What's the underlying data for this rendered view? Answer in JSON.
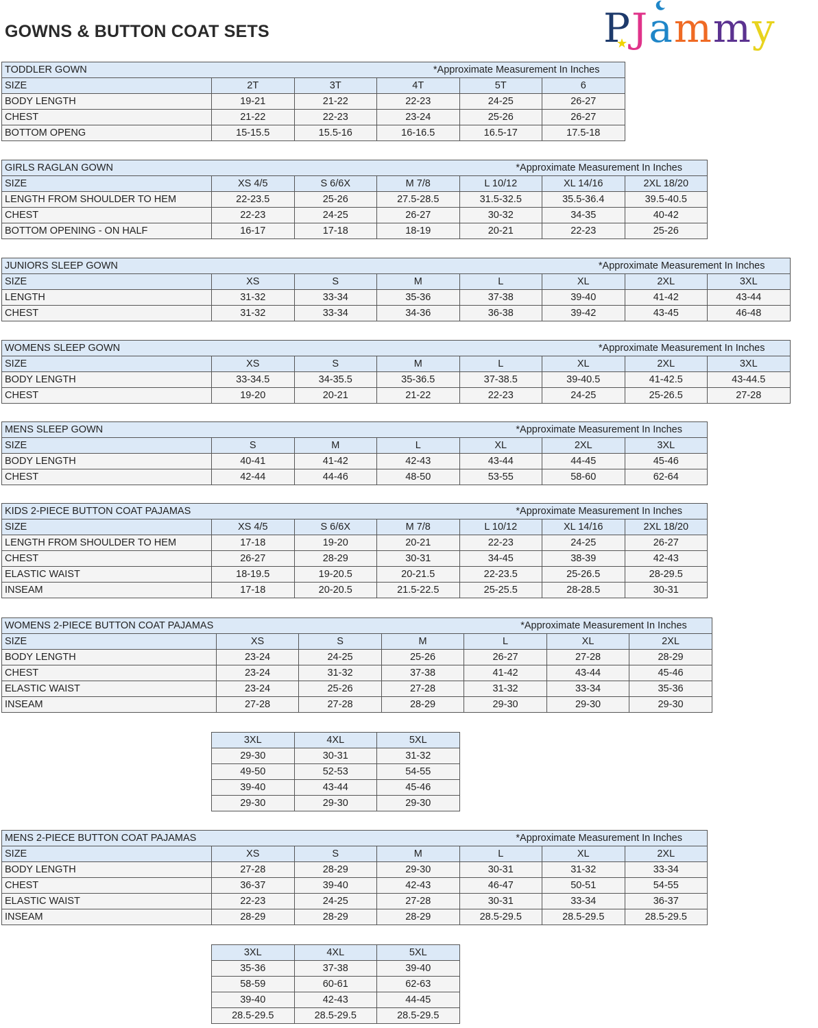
{
  "page_title": "GOWNS & BUTTON COAT SETS",
  "logo": {
    "text": "PJammy",
    "letters": [
      "P",
      "J",
      "a",
      "m",
      "m",
      "y"
    ],
    "colors": [
      "#1d3a6b",
      "#e0338a",
      "#1f86c8",
      "#ef6a24",
      "#5b3290",
      "#e8d31e"
    ]
  },
  "colors": {
    "header_bg": "#dce9f7",
    "row_bg": "#f4f4f4",
    "border": "#555555"
  },
  "note": "*Approximate Measurement In Inches",
  "tables": [
    {
      "title": "TODDLER GOWN",
      "sizes": [
        "2T",
        "3T",
        "4T",
        "5T",
        "6"
      ],
      "rows": [
        {
          "label": "BODY LENGTH",
          "values": [
            "19-21",
            "21-22",
            "22-23",
            "24-25",
            "26-27"
          ]
        },
        {
          "label": "CHEST",
          "values": [
            "21-22",
            "22-23",
            "23-24",
            "25-26",
            "26-27"
          ]
        },
        {
          "label": "BOTTOM OPENG",
          "values": [
            "15-15.5",
            "15.5-16",
            "16-16.5",
            "16.5-17",
            "17.5-18"
          ]
        }
      ]
    },
    {
      "title": "GIRLS RAGLAN GOWN",
      "sizes": [
        "XS 4/5",
        "S 6/6X",
        "M 7/8",
        "L 10/12",
        "XL 14/16",
        "2XL 18/20"
      ],
      "rows": [
        {
          "label": "LENGTH FROM SHOULDER TO HEM",
          "values": [
            "22-23.5",
            "25-26",
            "27.5-28.5",
            "31.5-32.5",
            "35.5-36.4",
            "39.5-40.5"
          ]
        },
        {
          "label": "CHEST",
          "values": [
            "22-23",
            "24-25",
            "26-27",
            "30-32",
            "34-35",
            "40-42"
          ]
        },
        {
          "label": "BOTTOM OPENING - ON HALF",
          "values": [
            "16-17",
            "17-18",
            "18-19",
            "20-21",
            "22-23",
            "25-26"
          ]
        }
      ]
    },
    {
      "title": "JUNIORS SLEEP GOWN",
      "sizes": [
        "XS",
        "S",
        "M",
        "L",
        "XL",
        "2XL",
        "3XL"
      ],
      "rows": [
        {
          "label": "LENGTH",
          "values": [
            "31-32",
            "33-34",
            "35-36",
            "37-38",
            "39-40",
            "41-42",
            "43-44"
          ]
        },
        {
          "label": "CHEST",
          "values": [
            "31-32",
            "33-34",
            "34-36",
            "36-38",
            "39-42",
            "43-45",
            "46-48"
          ]
        }
      ]
    },
    {
      "title": "WOMENS SLEEP GOWN",
      "sizes": [
        "XS",
        "S",
        "M",
        "L",
        "XL",
        "2XL",
        "3XL"
      ],
      "rows": [
        {
          "label": "BODY LENGTH",
          "values": [
            "33-34.5",
            "34-35.5",
            "35-36.5",
            "37-38.5",
            "39-40.5",
            "41-42.5",
            "43-44.5"
          ]
        },
        {
          "label": "CHEST",
          "values": [
            "19-20",
            "20-21",
            "21-22",
            "22-23",
            "24-25",
            "25-26.5",
            "27-28"
          ]
        }
      ]
    },
    {
      "title": "MENS SLEEP GOWN",
      "sizes": [
        "S",
        "M",
        "L",
        "XL",
        "2XL",
        "3XL"
      ],
      "rows": [
        {
          "label": "BODY LENGTH",
          "values": [
            "40-41",
            "41-42",
            "42-43",
            "43-44",
            "44-45",
            "45-46"
          ]
        },
        {
          "label": "CHEST",
          "values": [
            "42-44",
            "44-46",
            "48-50",
            "53-55",
            "58-60",
            "62-64"
          ]
        }
      ]
    },
    {
      "title": "KIDS 2-PIECE BUTTON COAT PAJAMAS",
      "sizes": [
        "XS 4/5",
        "S 6/6X",
        "M 7/8",
        "L 10/12",
        "XL 14/16",
        "2XL 18/20"
      ],
      "rows": [
        {
          "label": "LENGTH FROM SHOULDER TO HEM",
          "values": [
            "17-18",
            "19-20",
            "20-21",
            "22-23",
            "24-25",
            "26-27"
          ]
        },
        {
          "label": "CHEST",
          "values": [
            "26-27",
            "28-29",
            "30-31",
            "34-45",
            "38-39",
            "42-43"
          ]
        },
        {
          "label": "ELASTIC WAIST",
          "values": [
            "18-19.5",
            "19-20.5",
            "20-21.5",
            "22-23.5",
            "25-26.5",
            "28-29.5"
          ]
        },
        {
          "label": "INSEAM",
          "values": [
            "17-18",
            "20-20.5",
            "21.5-22.5",
            "25-25.5",
            "28-28.5",
            "30-31"
          ]
        }
      ]
    },
    {
      "title": "WOMENS 2-PIECE BUTTON COAT PAJAMAS",
      "sizes": [
        "XS",
        "S",
        "M",
        "L",
        "XL",
        "2XL"
      ],
      "rows": [
        {
          "label": "BODY LENGTH",
          "values": [
            "23-24",
            "24-25",
            "25-26",
            "26-27",
            "27-28",
            "28-29"
          ]
        },
        {
          "label": "CHEST",
          "values": [
            "23-24",
            "31-32",
            "37-38",
            "41-42",
            "43-44",
            "45-46"
          ]
        },
        {
          "label": "ELASTIC WAIST",
          "values": [
            "23-24",
            "25-26",
            "27-28",
            "31-32",
            "33-34",
            "35-36"
          ]
        },
        {
          "label": "INSEAM",
          "values": [
            "27-28",
            "27-28",
            "28-29",
            "29-30",
            "29-30",
            "29-30"
          ]
        }
      ],
      "continuation": {
        "sizes": [
          "3XL",
          "4XL",
          "5XL"
        ],
        "rows": [
          [
            "29-30",
            "30-31",
            "31-32"
          ],
          [
            "49-50",
            "52-53",
            "54-55"
          ],
          [
            "39-40",
            "43-44",
            "45-46"
          ],
          [
            "29-30",
            "29-30",
            "29-30"
          ]
        ]
      }
    },
    {
      "title": "MENS 2-PIECE BUTTON COAT PAJAMAS",
      "sizes": [
        "XS",
        "S",
        "M",
        "L",
        "XL",
        "2XL"
      ],
      "rows": [
        {
          "label": "BODY LENGTH",
          "values": [
            "27-28",
            "28-29",
            "29-30",
            "30-31",
            "31-32",
            "33-34"
          ]
        },
        {
          "label": "CHEST",
          "values": [
            "36-37",
            "39-40",
            "42-43",
            "46-47",
            "50-51",
            "54-55"
          ]
        },
        {
          "label": "ELASTIC WAIST",
          "values": [
            "22-23",
            "24-25",
            "27-28",
            "30-31",
            "33-34",
            "36-37"
          ]
        },
        {
          "label": "INSEAM",
          "values": [
            "28-29",
            "28-29",
            "28-29",
            "28.5-29.5",
            "28.5-29.5",
            "28.5-29.5"
          ]
        }
      ],
      "continuation": {
        "sizes": [
          "3XL",
          "4XL",
          "5XL"
        ],
        "rows": [
          [
            "35-36",
            "37-38",
            "39-40"
          ],
          [
            "58-59",
            "60-61",
            "62-63"
          ],
          [
            "39-40",
            "42-43",
            "44-45"
          ],
          [
            "28.5-29.5",
            "28.5-29.5",
            "28.5-29.5"
          ]
        ]
      }
    }
  ],
  "size_label": "SIZE"
}
